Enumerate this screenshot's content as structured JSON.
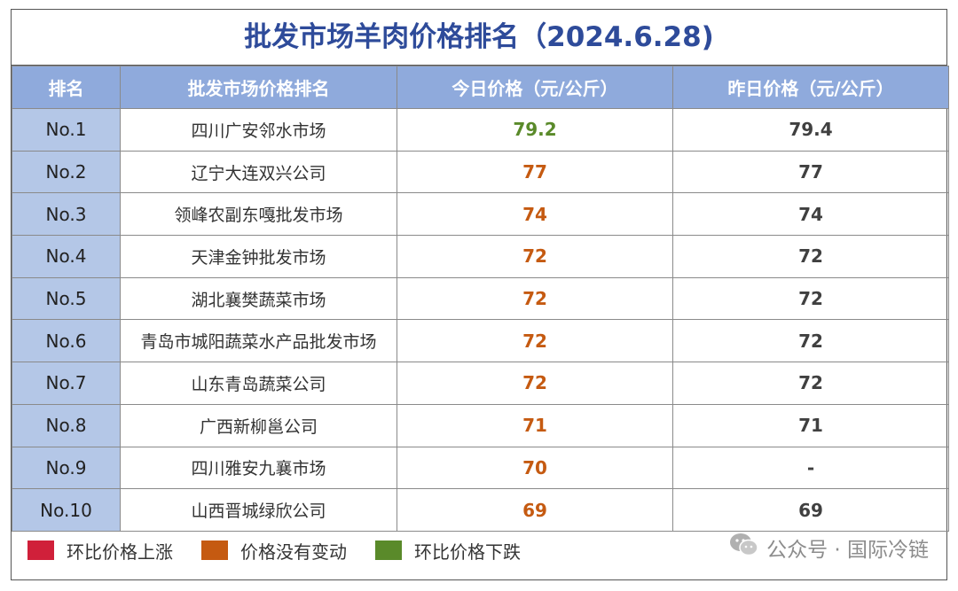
{
  "title": "批发市场羊肉价格排名（2024.6.28)",
  "headers": {
    "rank": "排名",
    "market": "批发市场价格排名",
    "today": "今日价格（元/公斤）",
    "yesterday": "昨日价格（元/公斤）"
  },
  "rows": [
    {
      "rank": "No.1",
      "market": "四川广安邻水市场",
      "today": "79.2",
      "yesterday": "79.4",
      "status": "down"
    },
    {
      "rank": "No.2",
      "market": "辽宁大连双兴公司",
      "today": "77",
      "yesterday": "77",
      "status": "same"
    },
    {
      "rank": "No.3",
      "market": "领峰农副东嘎批发市场",
      "today": "74",
      "yesterday": "74",
      "status": "same"
    },
    {
      "rank": "No.4",
      "market": "天津金钟批发市场",
      "today": "72",
      "yesterday": "72",
      "status": "same"
    },
    {
      "rank": "No.5",
      "market": "湖北襄樊蔬菜市场",
      "today": "72",
      "yesterday": "72",
      "status": "same"
    },
    {
      "rank": "No.6",
      "market": "青岛市城阳蔬菜水产品批发市场",
      "today": "72",
      "yesterday": "72",
      "status": "same"
    },
    {
      "rank": "No.7",
      "market": "山东青岛蔬菜公司",
      "today": "72",
      "yesterday": "72",
      "status": "same"
    },
    {
      "rank": "No.8",
      "market": "广西新柳邕公司",
      "today": "71",
      "yesterday": "71",
      "status": "same"
    },
    {
      "rank": "No.9",
      "market": "四川雅安九襄市场",
      "today": "70",
      "yesterday": "-",
      "status": "same"
    },
    {
      "rank": "No.10",
      "market": "山西晋城绿欣公司",
      "today": "69",
      "yesterday": "69",
      "status": "same"
    }
  ],
  "legend": [
    {
      "label": "环比价格上涨",
      "color": "#d0203a"
    },
    {
      "label": "价格没有变动",
      "color": "#c55a11"
    },
    {
      "label": "环比价格下跌",
      "color": "#5a8a2a"
    }
  ],
  "watermark": {
    "text": "公众号 · 国际冷链",
    "icon": "wechat-icon"
  },
  "colors": {
    "title": "#2e4b9a",
    "header_bg": "#8faadc",
    "rank_bg": "#b4c7e7",
    "up": "#c8283c",
    "same": "#c55a11",
    "down": "#5a8a2a"
  }
}
